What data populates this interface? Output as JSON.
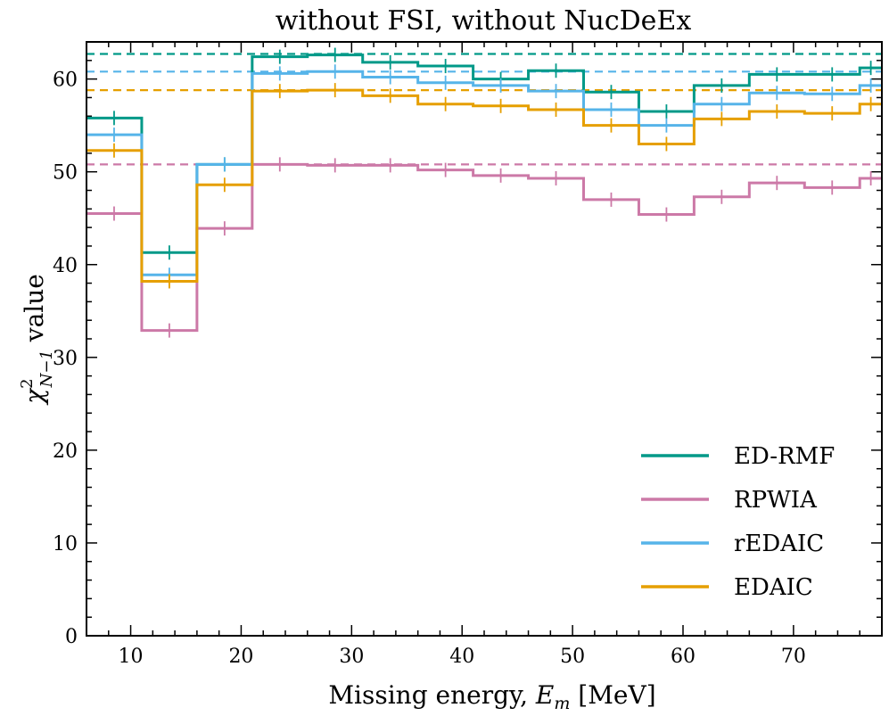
{
  "chart_data": {
    "type": "line",
    "drawstyle": "steps",
    "title": "without FSI, without NucDeEx",
    "xlabel_text": "Missing energy, ",
    "xlabel_math": "E",
    "xlabel_math_sub": "m",
    "xlabel_units": " [MeV]",
    "ylabel_text": " value",
    "ylabel_math": "χ",
    "ylabel_sup": "2",
    "ylabel_sub": "N−1",
    "xlim": [
      6,
      78
    ],
    "ylim": [
      0,
      64
    ],
    "x_ticks": [
      10,
      20,
      30,
      40,
      50,
      60,
      70
    ],
    "y_ticks": [
      0,
      10,
      20,
      30,
      40,
      50,
      60
    ],
    "legend_position": "lower right",
    "bin_edges": [
      6,
      11,
      16,
      21,
      26,
      31,
      36,
      41,
      46,
      51,
      56,
      61,
      66,
      71,
      76,
      78
    ],
    "bin_centers": [
      8.5,
      13.5,
      18.5,
      23.5,
      28.5,
      33.5,
      38.5,
      43.5,
      48.5,
      53.5,
      58.5,
      63.5,
      68.5,
      73.5,
      77
    ],
    "series": [
      {
        "name": "ED-RMF",
        "color": "#009988",
        "values": [
          55.8,
          41.3,
          50.8,
          62.4,
          62.6,
          61.8,
          61.4,
          60.0,
          60.9,
          58.6,
          56.5,
          59.3,
          60.5,
          60.5,
          61.2
        ],
        "reference": 62.7
      },
      {
        "name": "RPWIA",
        "color": "#CC79A7",
        "values": [
          45.5,
          32.9,
          43.9,
          50.8,
          50.7,
          50.7,
          50.2,
          49.6,
          49.3,
          47.0,
          45.4,
          47.3,
          48.8,
          48.3,
          49.3
        ],
        "reference": 50.8
      },
      {
        "name": "rEDAIC",
        "color": "#56B4E9",
        "values": [
          54.0,
          38.9,
          50.8,
          60.6,
          60.8,
          60.2,
          59.6,
          59.3,
          58.7,
          56.7,
          55.0,
          57.3,
          58.5,
          58.4,
          59.3
        ],
        "reference": 60.8
      },
      {
        "name": "EDAIC",
        "color": "#E69F00",
        "values": [
          52.3,
          38.2,
          48.6,
          58.7,
          58.8,
          58.2,
          57.3,
          57.1,
          56.7,
          55.0,
          53.0,
          55.7,
          56.5,
          56.3,
          57.3
        ],
        "reference": 58.8
      }
    ]
  }
}
